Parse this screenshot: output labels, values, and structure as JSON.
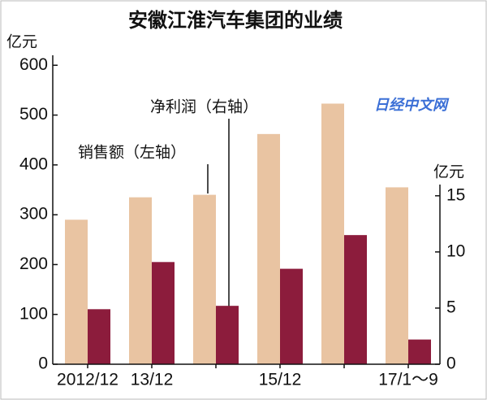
{
  "chart_data": {
    "type": "bar",
    "title": "安徽江淮汽车集团的业绩",
    "y_unit": "亿元",
    "y2_unit": "亿元",
    "watermark": "日经中文网",
    "categories": [
      "2012/12",
      "13/12",
      null,
      "15/12",
      null,
      "17/1～9"
    ],
    "series": [
      {
        "name": "销售额（左轴）",
        "color": "#e9c4a2",
        "values": [
          290,
          335,
          340,
          462,
          523,
          355
        ]
      },
      {
        "name": "净利润（右轴）",
        "color": "#8c1c3c",
        "axis": "y2",
        "values": [
          4.9,
          9.1,
          5.2,
          8.5,
          11.5,
          2.2
        ]
      }
    ],
    "ylim": [
      0,
      620
    ],
    "yticks": [
      0,
      100,
      200,
      300,
      400,
      500,
      600
    ],
    "y2lim": [
      0,
      16
    ],
    "y2ticks": [
      0,
      5,
      10,
      15
    ]
  }
}
